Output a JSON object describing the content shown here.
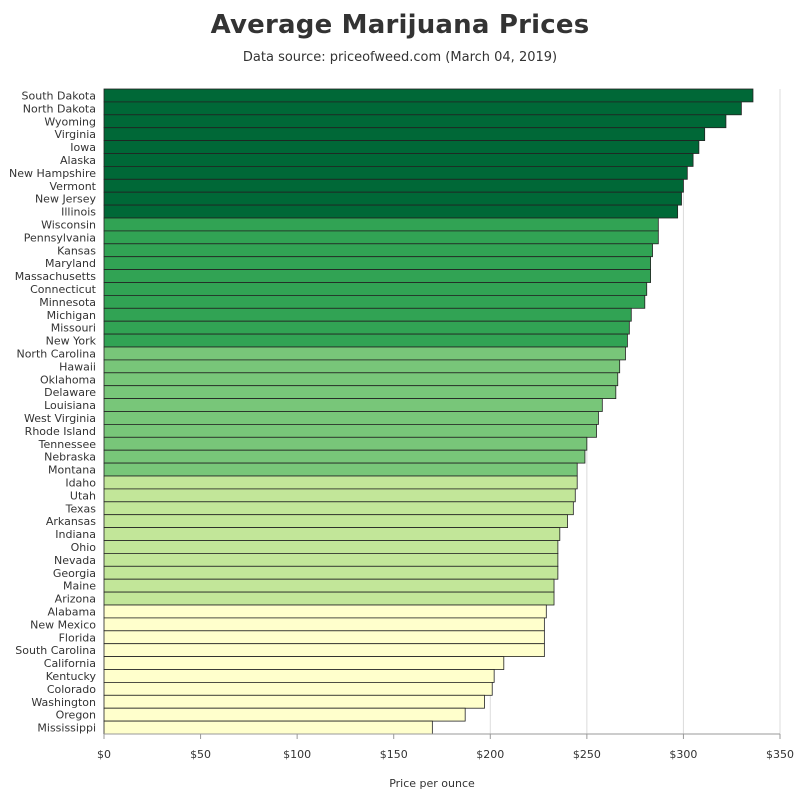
{
  "chart_data": {
    "type": "bar",
    "orientation": "horizontal",
    "title": "Average Marijuana Prices",
    "subtitle": "Data source: priceofweed.com (March 04, 2019)",
    "xlabel": "Price per ounce",
    "ylabel": "",
    "xlim": [
      0,
      350
    ],
    "x_ticks": [
      "$0",
      "$50",
      "$100",
      "$150",
      "$200",
      "$250",
      "$300",
      "$350"
    ],
    "x_tick_values": [
      0,
      50,
      100,
      150,
      200,
      250,
      300,
      350
    ],
    "grid": "vertical lines",
    "legend": "none",
    "color_bins": [
      {
        "color": "#006837",
        "count": 10
      },
      {
        "color": "#31a354",
        "count": 10
      },
      {
        "color": "#78c679",
        "count": 10
      },
      {
        "color": "#c2e699",
        "count": 10
      },
      {
        "color": "#ffffcc",
        "count": 10
      }
    ],
    "categories": [
      "South Dakota",
      "North Dakota",
      "Wyoming",
      "Virginia",
      "Iowa",
      "Alaska",
      "New Hampshire",
      "Vermont",
      "New Jersey",
      "Illinois",
      "Wisconsin",
      "Pennsylvania",
      "Kansas",
      "Maryland",
      "Massachusetts",
      "Connecticut",
      "Minnesota",
      "Michigan",
      "Missouri",
      "New York",
      "North Carolina",
      "Hawaii",
      "Oklahoma",
      "Delaware",
      "Louisiana",
      "West Virginia",
      "Rhode Island",
      "Tennessee",
      "Nebraska",
      "Montana",
      "Idaho",
      "Utah",
      "Texas",
      "Arkansas",
      "Indiana",
      "Ohio",
      "Nevada",
      "Georgia",
      "Maine",
      "Arizona",
      "Alabama",
      "New Mexico",
      "Florida",
      "South Carolina",
      "California",
      "Kentucky",
      "Colorado",
      "Washington",
      "Oregon",
      "Mississippi"
    ],
    "values": [
      336,
      330,
      322,
      311,
      308,
      305,
      302,
      300,
      299,
      297,
      287,
      287,
      284,
      283,
      283,
      281,
      280,
      273,
      272,
      271,
      270,
      267,
      266,
      265,
      258,
      256,
      255,
      250,
      249,
      245,
      245,
      244,
      243,
      240,
      236,
      235,
      235,
      235,
      233,
      233,
      229,
      228,
      228,
      228,
      207,
      202,
      201,
      197,
      187,
      170
    ]
  }
}
